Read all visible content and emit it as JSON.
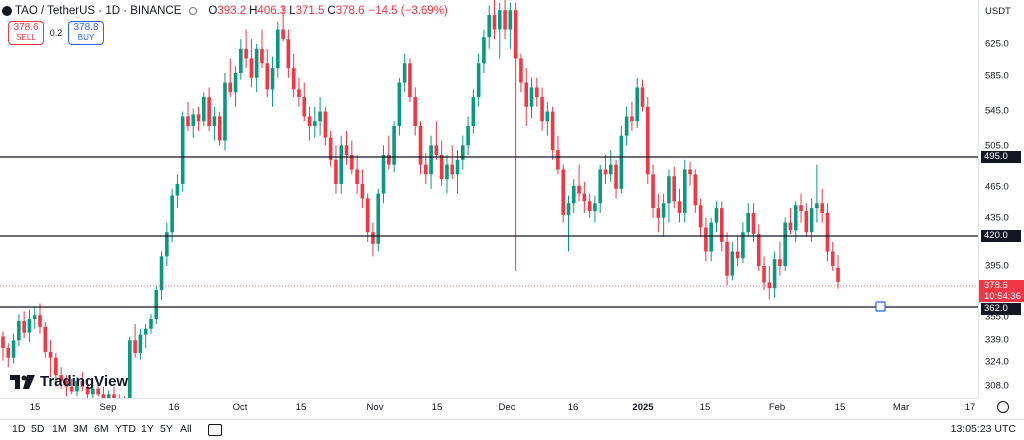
{
  "legend": {
    "symbol": "TAO / TetherUS · 1D · BINANCE",
    "o_label": "O",
    "o_value": "393.2",
    "h_label": "H",
    "h_value": "406.3",
    "l_label": "L",
    "l_value": "371.5",
    "c_label": "C",
    "c_value": "378.6",
    "change": "−14.5 (−3.69%)"
  },
  "trade": {
    "sell_price": "378.6",
    "sell_label": "SELL",
    "spread": "0.2",
    "buy_price": "378.8",
    "buy_label": "BUY"
  },
  "logo_text": "TradingView",
  "price_scale": {
    "currency": "USDT",
    "ticks": [
      "625.0",
      "585.0",
      "545.0",
      "505.0",
      "465.0",
      "435.0",
      "395.0",
      "355.0",
      "339.0",
      "324.0",
      "308.0"
    ],
    "level_labels": [
      "495.0",
      "420.0",
      "362.0"
    ],
    "current_price": "378.6",
    "countdown": "10:54:36"
  },
  "time_scale": {
    "ticks": [
      "15",
      "Sep",
      "16",
      "Oct",
      "15",
      "Nov",
      "15",
      "Dec",
      "16",
      "2025",
      "15",
      "Feb",
      "15",
      "Mar",
      "17"
    ]
  },
  "toolbar": {
    "timeframes": [
      "1D",
      "5D",
      "1M",
      "3M",
      "6M",
      "YTD",
      "1Y",
      "5Y",
      "All"
    ],
    "clock": "13:05:23 UTC"
  },
  "colors": {
    "up": "#089981",
    "down": "#f23645",
    "line": "#131722"
  },
  "chart_data": {
    "type": "candlestick",
    "title": "",
    "horizontal_levels": [
      495.0,
      420.0,
      362.0
    ],
    "candles": [
      [
        322,
        327,
        297,
        310
      ],
      [
        310,
        315,
        290,
        300
      ],
      [
        300,
        325,
        294,
        318
      ],
      [
        318,
        345,
        312,
        338
      ],
      [
        338,
        348,
        320,
        326
      ],
      [
        326,
        350,
        316,
        340
      ],
      [
        340,
        352,
        330,
        344
      ],
      [
        344,
        356,
        325,
        332
      ],
      [
        332,
        337,
        300,
        306
      ],
      [
        306,
        318,
        280,
        300
      ],
      [
        300,
        305,
        270,
        282
      ],
      [
        282,
        290,
        268,
        276
      ],
      [
        276,
        282,
        260,
        270
      ],
      [
        270,
        278,
        262,
        265
      ],
      [
        265,
        280,
        260,
        276
      ],
      [
        276,
        285,
        265,
        270
      ],
      [
        270,
        278,
        255,
        262
      ],
      [
        262,
        272,
        250,
        268
      ],
      [
        268,
        275,
        260,
        262
      ],
      [
        262,
        270,
        255,
        258
      ],
      [
        258,
        266,
        250,
        262
      ],
      [
        262,
        270,
        252,
        256
      ],
      [
        256,
        262,
        246,
        252
      ],
      [
        252,
        260,
        240,
        248
      ],
      [
        248,
        322,
        244,
        318
      ],
      [
        318,
        335,
        300,
        305
      ],
      [
        305,
        330,
        298,
        324
      ],
      [
        324,
        335,
        310,
        330
      ],
      [
        330,
        345,
        325,
        340
      ],
      [
        340,
        375,
        335,
        370
      ],
      [
        370,
        410,
        360,
        405
      ],
      [
        405,
        440,
        395,
        430
      ],
      [
        430,
        475,
        420,
        468
      ],
      [
        468,
        490,
        455,
        480
      ],
      [
        480,
        555,
        472,
        550
      ],
      [
        550,
        565,
        535,
        540
      ],
      [
        540,
        558,
        528,
        552
      ],
      [
        552,
        560,
        535,
        545
      ],
      [
        545,
        575,
        540,
        570
      ],
      [
        570,
        580,
        535,
        540
      ],
      [
        540,
        560,
        525,
        550
      ],
      [
        550,
        555,
        520,
        525
      ],
      [
        525,
        595,
        515,
        585
      ],
      [
        585,
        610,
        570,
        575
      ],
      [
        575,
        602,
        560,
        595
      ],
      [
        595,
        630,
        588,
        620
      ],
      [
        620,
        640,
        600,
        610
      ],
      [
        610,
        630,
        580,
        590
      ],
      [
        590,
        625,
        575,
        620
      ],
      [
        620,
        640,
        600,
        605
      ],
      [
        605,
        620,
        570,
        578
      ],
      [
        578,
        612,
        560,
        600
      ],
      [
        600,
        648,
        590,
        640
      ],
      [
        640,
        665,
        628,
        630
      ],
      [
        630,
        640,
        590,
        600
      ],
      [
        600,
        615,
        570,
        578
      ],
      [
        578,
        590,
        560,
        570
      ],
      [
        570,
        585,
        545,
        550
      ],
      [
        550,
        560,
        525,
        540
      ],
      [
        540,
        560,
        528,
        545
      ],
      [
        545,
        570,
        530,
        555
      ],
      [
        555,
        560,
        520,
        528
      ],
      [
        528,
        535,
        498,
        505
      ],
      [
        505,
        520,
        470,
        480
      ],
      [
        480,
        530,
        470,
        520
      ],
      [
        520,
        535,
        500,
        510
      ],
      [
        510,
        525,
        490,
        495
      ],
      [
        495,
        510,
        470,
        480
      ],
      [
        480,
        495,
        455,
        465
      ],
      [
        465,
        470,
        420,
        430
      ],
      [
        430,
        440,
        405,
        418
      ],
      [
        418,
        475,
        410,
        470
      ],
      [
        470,
        520,
        460,
        510
      ],
      [
        510,
        530,
        495,
        500
      ],
      [
        500,
        545,
        492,
        540
      ],
      [
        540,
        590,
        530,
        585
      ],
      [
        585,
        615,
        575,
        605
      ],
      [
        605,
        610,
        565,
        570
      ],
      [
        570,
        580,
        530,
        540
      ],
      [
        540,
        545,
        490,
        500
      ],
      [
        500,
        512,
        480,
        490
      ],
      [
        490,
        530,
        475,
        520
      ],
      [
        520,
        545,
        505,
        510
      ],
      [
        510,
        525,
        478,
        485
      ],
      [
        485,
        510,
        470,
        500
      ],
      [
        500,
        520,
        485,
        490
      ],
      [
        490,
        515,
        470,
        505
      ],
      [
        505,
        530,
        495,
        520
      ],
      [
        520,
        550,
        510,
        540
      ],
      [
        540,
        578,
        532,
        570
      ],
      [
        570,
        615,
        560,
        605
      ],
      [
        605,
        640,
        595,
        632
      ],
      [
        632,
        665,
        620,
        655
      ],
      [
        655,
        672,
        630,
        640
      ],
      [
        640,
        668,
        610,
        660
      ],
      [
        660,
        672,
        630,
        640
      ],
      [
        640,
        668,
        620,
        660
      ],
      [
        660,
        668,
        390,
        610
      ],
      [
        610,
        615,
        575,
        585
      ],
      [
        585,
        600,
        540,
        560
      ],
      [
        560,
        590,
        548,
        580
      ],
      [
        580,
        590,
        560,
        570
      ],
      [
        570,
        580,
        535,
        545
      ],
      [
        545,
        565,
        530,
        555
      ],
      [
        555,
        560,
        505,
        515
      ],
      [
        515,
        530,
        490,
        495
      ],
      [
        495,
        500,
        440,
        448
      ],
      [
        448,
        468,
        410,
        460
      ],
      [
        460,
        485,
        450,
        478
      ],
      [
        478,
        500,
        462,
        470
      ],
      [
        470,
        482,
        450,
        462
      ],
      [
        462,
        470,
        445,
        452
      ],
      [
        452,
        468,
        440,
        460
      ],
      [
        460,
        500,
        450,
        495
      ],
      [
        495,
        510,
        480,
        490
      ],
      [
        490,
        515,
        482,
        500
      ],
      [
        500,
        505,
        465,
        475
      ],
      [
        475,
        540,
        470,
        530
      ],
      [
        530,
        560,
        520,
        550
      ],
      [
        550,
        565,
        535,
        545
      ],
      [
        545,
        590,
        538,
        580
      ],
      [
        580,
        588,
        555,
        560
      ],
      [
        560,
        570,
        480,
        490
      ],
      [
        490,
        500,
        445,
        455
      ],
      [
        455,
        470,
        430,
        445
      ],
      [
        445,
        470,
        425,
        460
      ],
      [
        460,
        495,
        440,
        488
      ],
      [
        488,
        498,
        455,
        462
      ],
      [
        462,
        475,
        440,
        450
      ],
      [
        450,
        505,
        440,
        495
      ],
      [
        495,
        503,
        478,
        490
      ],
      [
        490,
        495,
        450,
        458
      ],
      [
        458,
        465,
        425,
        435
      ],
      [
        435,
        445,
        400,
        410
      ],
      [
        410,
        445,
        400,
        440
      ],
      [
        440,
        462,
        430,
        455
      ],
      [
        455,
        462,
        410,
        420
      ],
      [
        420,
        430,
        375,
        385
      ],
      [
        385,
        420,
        380,
        410
      ],
      [
        410,
        426,
        395,
        403
      ],
      [
        403,
        440,
        398,
        430
      ],
      [
        430,
        460,
        425,
        450
      ],
      [
        450,
        460,
        420,
        428
      ],
      [
        428,
        438,
        390,
        395
      ],
      [
        395,
        405,
        370,
        378
      ],
      [
        378,
        395,
        360,
        372
      ],
      [
        372,
        410,
        362,
        402
      ],
      [
        402,
        420,
        385,
        395
      ],
      [
        395,
        445,
        390,
        440
      ],
      [
        440,
        455,
        428,
        432
      ],
      [
        432,
        462,
        420,
        458
      ],
      [
        458,
        470,
        440,
        452
      ],
      [
        452,
        460,
        425,
        430
      ],
      [
        430,
        465,
        420,
        455
      ],
      [
        455,
        500,
        440,
        460
      ],
      [
        460,
        475,
        440,
        450
      ],
      [
        450,
        460,
        400,
        410
      ],
      [
        410,
        420,
        390,
        395
      ],
      [
        393.2,
        406.3,
        371.5,
        378.6
      ]
    ]
  }
}
